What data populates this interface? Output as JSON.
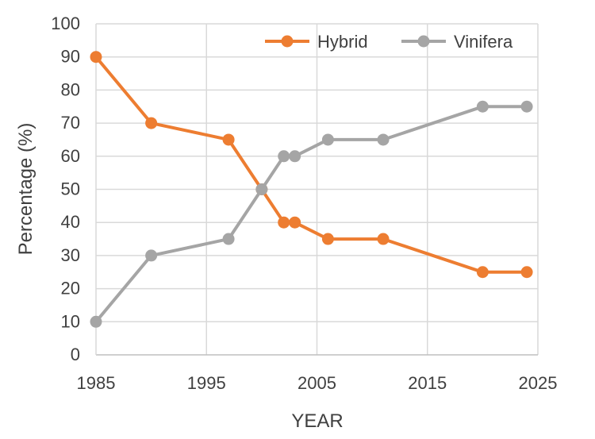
{
  "chart_data": {
    "type": "line",
    "title": "",
    "xlabel": "YEAR",
    "ylabel": "Percentage (%)",
    "xlim": [
      1985,
      2025
    ],
    "ylim": [
      0,
      100
    ],
    "x_ticks": [
      "1985",
      "1995",
      "2005",
      "2015",
      "2025"
    ],
    "y_ticks": [
      "0",
      "10",
      "20",
      "30",
      "40",
      "50",
      "60",
      "70",
      "80",
      "90",
      "100"
    ],
    "grid": true,
    "legend_position": "top-right",
    "series": [
      {
        "name": "Hybrid",
        "color": "#ED7D31",
        "points": [
          [
            1985,
            90
          ],
          [
            1990,
            70
          ],
          [
            1997,
            65
          ],
          [
            2000,
            50
          ],
          [
            2002,
            40
          ],
          [
            2003,
            40
          ],
          [
            2006,
            35
          ],
          [
            2011,
            35
          ],
          [
            2020,
            25
          ],
          [
            2024,
            25
          ]
        ]
      },
      {
        "name": "Vinifera",
        "color": "#A5A5A5",
        "points": [
          [
            1985,
            10
          ],
          [
            1990,
            30
          ],
          [
            1997,
            35
          ],
          [
            2000,
            50
          ],
          [
            2002,
            60
          ],
          [
            2003,
            60
          ],
          [
            2006,
            65
          ],
          [
            2011,
            65
          ],
          [
            2020,
            75
          ],
          [
            2024,
            75
          ]
        ]
      }
    ]
  }
}
